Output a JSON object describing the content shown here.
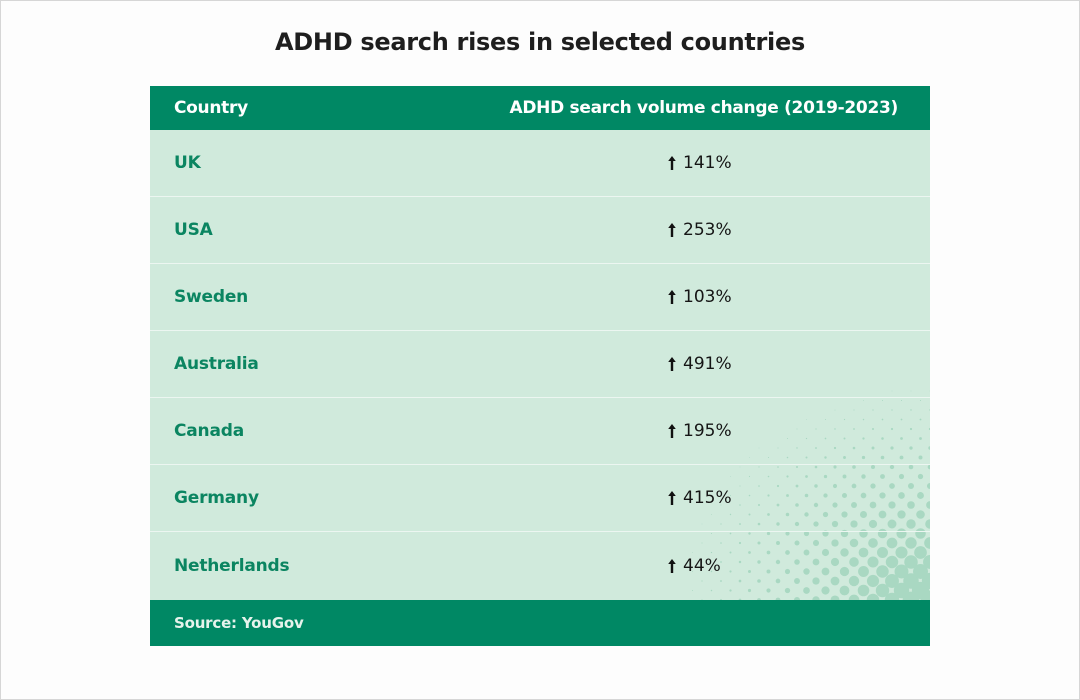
{
  "title": "ADHD search rises in selected countries",
  "table": {
    "columns": [
      "Country",
      "ADHD search volume change (2019-2023)"
    ],
    "rows": [
      {
        "country": "UK",
        "change": "141%",
        "direction": "up"
      },
      {
        "country": "USA",
        "change": "253%",
        "direction": "up"
      },
      {
        "country": "Sweden",
        "change": "103%",
        "direction": "up"
      },
      {
        "country": "Australia",
        "change": "491%",
        "direction": "up"
      },
      {
        "country": "Canada",
        "change": "195%",
        "direction": "up"
      },
      {
        "country": "Germany",
        "change": "415%",
        "direction": "up"
      },
      {
        "country": "Netherlands",
        "change": "44%",
        "direction": "up"
      }
    ],
    "footer": "Source: YouGov"
  },
  "icons": {
    "increase": "arrow-up-icon"
  },
  "colors": {
    "header_bg": "#008864",
    "row_bg": "#d0eadc",
    "country_text": "#0b8561",
    "separator": "#ecf6f1",
    "halftone_dot": "#a9d8c2"
  }
}
